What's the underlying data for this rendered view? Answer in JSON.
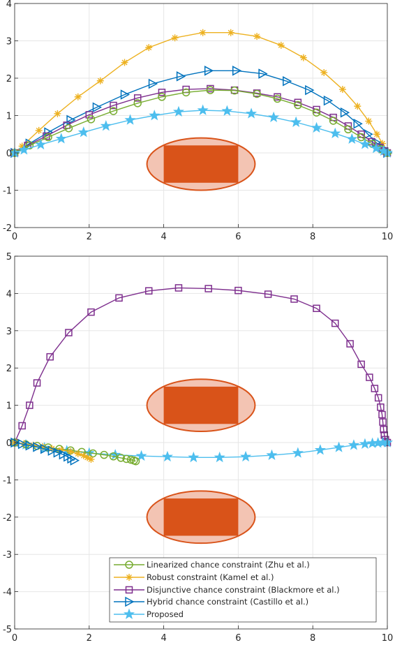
{
  "colors": {
    "linearized": "#77ac30",
    "robust": "#edb120",
    "disjunctive": "#7e2f8e",
    "hybrid": "#0072bd",
    "proposed": "#4dbeee",
    "obstacle_fill": "#d95319",
    "uncertainty_fill": "#f3c4b3",
    "grid": "#e6e6e6",
    "axis": "#262626"
  },
  "legend": {
    "entries": [
      {
        "label": "Linearized chance constraint (Zhu et al.)",
        "marker": "circle-icon",
        "color": "#77ac30"
      },
      {
        "label": "Robust constraint (Kamel et al.)",
        "marker": "asterisk-icon",
        "color": "#edb120"
      },
      {
        "label": "Disjunctive chance constraint (Blackmore et al.)",
        "marker": "square-icon",
        "color": "#7e2f8e"
      },
      {
        "label": "Hybrid chance constraint (Castillo et al.)",
        "marker": "triangle-right-icon",
        "color": "#0072bd"
      },
      {
        "label": "Proposed",
        "marker": "pentagram-icon",
        "color": "#4dbeee"
      }
    ]
  },
  "chart_data": [
    {
      "type": "line",
      "xlim": [
        0,
        10
      ],
      "ylim": [
        -2,
        4
      ],
      "xticks": [
        "0",
        "2",
        "4",
        "6",
        "8",
        "10"
      ],
      "yticks": [
        "-2",
        "-1",
        "0",
        "1",
        "2",
        "3",
        "4"
      ],
      "grid": true,
      "obstacles": [
        {
          "rect": {
            "x": [
              4,
              6
            ],
            "y": [
              -0.8,
              0.2
            ]
          },
          "ellipse": {
            "cx": 5,
            "cy": -0.3,
            "rx": 1.45,
            "ry": 0.7
          }
        }
      ],
      "series": [
        {
          "key": "robust",
          "marker": "asterisk",
          "x": [
            0,
            0.2,
            0.65,
            1.15,
            1.7,
            2.3,
            2.95,
            3.6,
            4.3,
            5.05,
            5.8,
            6.5,
            7.15,
            7.75,
            8.3,
            8.8,
            9.2,
            9.5,
            9.72,
            9.87,
            10
          ],
          "y": [
            0,
            0.18,
            0.6,
            1.05,
            1.5,
            1.93,
            2.42,
            2.82,
            3.08,
            3.22,
            3.22,
            3.12,
            2.88,
            2.55,
            2.15,
            1.7,
            1.25,
            0.85,
            0.5,
            0.25,
            0
          ]
        },
        {
          "key": "hybrid",
          "marker": "triangle",
          "x": [
            0,
            0.4,
            0.9,
            1.5,
            2.2,
            2.95,
            3.7,
            4.45,
            5.2,
            5.95,
            6.65,
            7.3,
            7.9,
            8.4,
            8.85,
            9.2,
            9.48,
            9.7,
            9.88,
            10
          ],
          "y": [
            0,
            0.25,
            0.55,
            0.88,
            1.22,
            1.56,
            1.85,
            2.05,
            2.2,
            2.2,
            2.12,
            1.92,
            1.68,
            1.4,
            1.08,
            0.78,
            0.5,
            0.28,
            0.12,
            0
          ]
        },
        {
          "key": "disjunctive",
          "marker": "square",
          "x": [
            0,
            0.35,
            0.85,
            1.4,
            2.0,
            2.65,
            3.3,
            3.95,
            4.6,
            5.25,
            5.9,
            6.5,
            7.05,
            7.6,
            8.1,
            8.55,
            8.95,
            9.3,
            9.58,
            9.8,
            9.93,
            10
          ],
          "y": [
            0,
            0.2,
            0.45,
            0.74,
            1.02,
            1.27,
            1.47,
            1.62,
            1.7,
            1.72,
            1.68,
            1.6,
            1.5,
            1.35,
            1.16,
            0.95,
            0.72,
            0.5,
            0.3,
            0.15,
            0.05,
            0
          ]
        },
        {
          "key": "linearized",
          "marker": "circle",
          "x": [
            0,
            0.4,
            0.9,
            1.45,
            2.05,
            2.65,
            3.3,
            3.95,
            4.6,
            5.25,
            5.9,
            6.5,
            7.05,
            7.6,
            8.1,
            8.55,
            8.95,
            9.3,
            9.6,
            9.82,
            10
          ],
          "y": [
            0,
            0.2,
            0.42,
            0.66,
            0.9,
            1.12,
            1.33,
            1.5,
            1.62,
            1.68,
            1.67,
            1.58,
            1.45,
            1.28,
            1.08,
            0.86,
            0.63,
            0.42,
            0.24,
            0.1,
            0
          ]
        },
        {
          "key": "proposed",
          "marker": "pentagram",
          "x": [
            0,
            0.25,
            0.7,
            1.25,
            1.85,
            2.45,
            3.1,
            3.75,
            4.4,
            5.05,
            5.7,
            6.35,
            6.95,
            7.55,
            8.1,
            8.6,
            9.05,
            9.4,
            9.7,
            9.9,
            10
          ],
          "y": [
            0,
            0.08,
            0.22,
            0.38,
            0.55,
            0.72,
            0.88,
            1.0,
            1.1,
            1.14,
            1.12,
            1.05,
            0.95,
            0.82,
            0.67,
            0.52,
            0.37,
            0.23,
            0.12,
            0.05,
            0
          ]
        }
      ]
    },
    {
      "type": "line",
      "xlim": [
        0,
        10
      ],
      "ylim": [
        -5,
        5
      ],
      "xticks": [
        "0",
        "2",
        "4",
        "6",
        "8",
        "10"
      ],
      "yticks": [
        "-5",
        "-4",
        "-3",
        "-2",
        "-1",
        "0",
        "1",
        "2",
        "3",
        "4",
        "5"
      ],
      "grid": true,
      "legend_position": "bottom-right",
      "obstacles": [
        {
          "rect": {
            "x": [
              4,
              6
            ],
            "y": [
              0.5,
              1.5
            ]
          },
          "ellipse": {
            "cx": 5,
            "cy": 1.0,
            "rx": 1.45,
            "ry": 0.7
          }
        },
        {
          "rect": {
            "x": [
              4,
              6
            ],
            "y": [
              -2.5,
              -1.5
            ]
          },
          "ellipse": {
            "cx": 5,
            "cy": -2.0,
            "rx": 1.45,
            "ry": 0.7
          }
        }
      ],
      "series": [
        {
          "key": "disjunctive",
          "marker": "square",
          "x": [
            0,
            0.2,
            0.4,
            0.6,
            0.95,
            1.45,
            2.05,
            2.8,
            3.6,
            4.4,
            5.2,
            6.0,
            6.8,
            7.5,
            8.1,
            8.6,
            9.0,
            9.3,
            9.52,
            9.66,
            9.76,
            9.82,
            9.86,
            9.88,
            9.9,
            9.92,
            9.95,
            10
          ],
          "y": [
            0,
            0.45,
            1.0,
            1.6,
            2.3,
            2.95,
            3.5,
            3.88,
            4.07,
            4.15,
            4.13,
            4.08,
            3.98,
            3.85,
            3.6,
            3.2,
            2.65,
            2.1,
            1.75,
            1.45,
            1.2,
            0.95,
            0.75,
            0.55,
            0.35,
            0.2,
            0.08,
            0
          ]
        },
        {
          "key": "proposed",
          "marker": "pentagram",
          "x": [
            0,
            0.3,
            0.8,
            1.4,
            2.0,
            2.7,
            3.4,
            4.1,
            4.8,
            5.5,
            6.2,
            6.9,
            7.6,
            8.2,
            8.7,
            9.1,
            9.4,
            9.6,
            9.75,
            9.88,
            10
          ],
          "y": [
            0,
            -0.06,
            -0.14,
            -0.22,
            -0.28,
            -0.33,
            -0.36,
            -0.38,
            -0.4,
            -0.4,
            -0.38,
            -0.34,
            -0.28,
            -0.2,
            -0.13,
            -0.07,
            -0.04,
            -0.02,
            -0.01,
            0,
            0
          ]
        },
        {
          "key": "linearized",
          "marker": "circle",
          "x": [
            0,
            0.3,
            0.6,
            0.9,
            1.2,
            1.5,
            1.8,
            2.1,
            2.4,
            2.65,
            2.85,
            3.0,
            3.12,
            3.2,
            3.25
          ],
          "y": [
            0,
            -0.05,
            -0.09,
            -0.13,
            -0.17,
            -0.21,
            -0.25,
            -0.29,
            -0.33,
            -0.37,
            -0.41,
            -0.44,
            -0.46,
            -0.48,
            -0.5
          ]
        },
        {
          "key": "robust",
          "marker": "asterisk",
          "x": [
            0,
            0.25,
            0.5,
            0.75,
            1.0,
            1.25,
            1.5,
            1.7,
            1.85,
            1.95,
            2.05
          ],
          "y": [
            0,
            -0.03,
            -0.07,
            -0.11,
            -0.16,
            -0.2,
            -0.24,
            -0.3,
            -0.35,
            -0.4,
            -0.45
          ]
        },
        {
          "key": "hybrid",
          "marker": "triangle",
          "x": [
            0,
            0.2,
            0.4,
            0.6,
            0.8,
            1.0,
            1.15,
            1.3,
            1.42,
            1.52,
            1.6
          ],
          "y": [
            0,
            -0.04,
            -0.08,
            -0.12,
            -0.17,
            -0.22,
            -0.27,
            -0.32,
            -0.38,
            -0.43,
            -0.48
          ]
        }
      ]
    }
  ]
}
